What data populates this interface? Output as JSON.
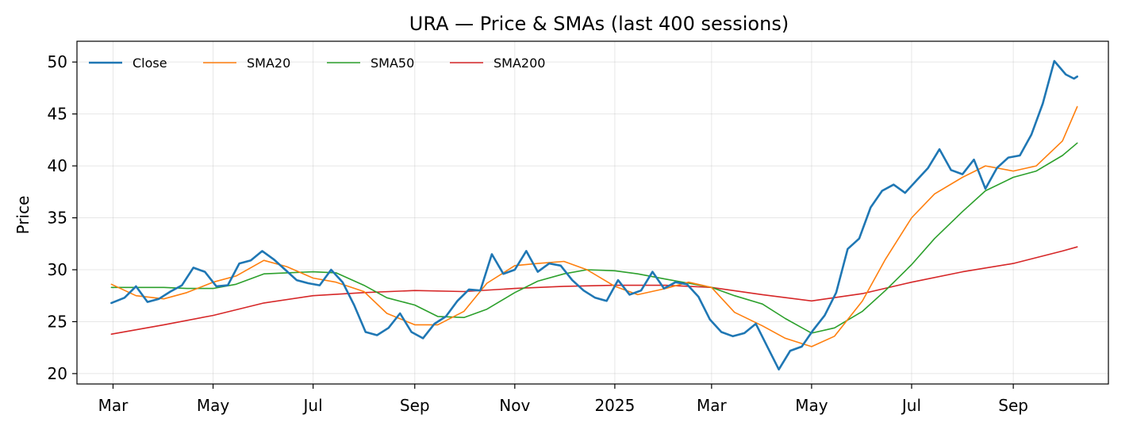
{
  "chart_data": {
    "type": "line",
    "title": "URA — Price & SMAs (last 400 sessions)",
    "xlabel": "",
    "ylabel": "Price",
    "ylim": [
      19,
      52
    ],
    "xlim": [
      "2024-02-08",
      "2025-10-29"
    ],
    "x_ticks": [
      {
        "date": "2024-03-01",
        "label": "Mar"
      },
      {
        "date": "2024-05-01",
        "label": "May"
      },
      {
        "date": "2024-07-01",
        "label": "Jul"
      },
      {
        "date": "2024-09-01",
        "label": "Sep"
      },
      {
        "date": "2024-11-01",
        "label": "Nov"
      },
      {
        "date": "2025-01-01",
        "label": "2025"
      },
      {
        "date": "2025-03-01",
        "label": "Mar"
      },
      {
        "date": "2025-05-01",
        "label": "May"
      },
      {
        "date": "2025-07-01",
        "label": "Jul"
      },
      {
        "date": "2025-09-01",
        "label": "Sep"
      }
    ],
    "y_ticks": [
      20,
      25,
      30,
      35,
      40,
      45,
      50
    ],
    "grid": true,
    "legend": {
      "placement": "top-left",
      "columns": 4,
      "frame": false
    },
    "series": [
      {
        "name": "Close",
        "color": "#1f77b4",
        "line_width": 2.6,
        "x": [
          "2024-02-29",
          "2024-03-08",
          "2024-03-15",
          "2024-03-22",
          "2024-03-29",
          "2024-04-05",
          "2024-04-12",
          "2024-04-19",
          "2024-04-26",
          "2024-05-03",
          "2024-05-10",
          "2024-05-17",
          "2024-05-24",
          "2024-05-31",
          "2024-06-07",
          "2024-06-14",
          "2024-06-21",
          "2024-06-28",
          "2024-07-05",
          "2024-07-12",
          "2024-07-19",
          "2024-07-26",
          "2024-08-02",
          "2024-08-09",
          "2024-08-16",
          "2024-08-23",
          "2024-08-30",
          "2024-09-06",
          "2024-09-13",
          "2024-09-20",
          "2024-09-27",
          "2024-10-04",
          "2024-10-11",
          "2024-10-18",
          "2024-10-25",
          "2024-11-01",
          "2024-11-08",
          "2024-11-15",
          "2024-11-22",
          "2024-11-29",
          "2024-12-06",
          "2024-12-13",
          "2024-12-20",
          "2024-12-27",
          "2025-01-03",
          "2025-01-10",
          "2025-01-17",
          "2025-01-24",
          "2025-01-31",
          "2025-02-07",
          "2025-02-14",
          "2025-02-21",
          "2025-02-28",
          "2025-03-07",
          "2025-03-14",
          "2025-03-21",
          "2025-03-28",
          "2025-04-04",
          "2025-04-11",
          "2025-04-18",
          "2025-04-25",
          "2025-05-02",
          "2025-05-09",
          "2025-05-16",
          "2025-05-23",
          "2025-05-30",
          "2025-06-06",
          "2025-06-13",
          "2025-06-20",
          "2025-06-27",
          "2025-07-04",
          "2025-07-11",
          "2025-07-18",
          "2025-07-25",
          "2025-08-01",
          "2025-08-08",
          "2025-08-15",
          "2025-08-22",
          "2025-08-29",
          "2025-09-05",
          "2025-09-12",
          "2025-09-19",
          "2025-09-26",
          "2025-10-03",
          "2025-10-08",
          "2025-10-10"
        ],
        "y": [
          26.8,
          27.3,
          28.4,
          26.9,
          27.2,
          27.9,
          28.5,
          30.2,
          29.8,
          28.4,
          28.5,
          30.6,
          30.9,
          31.8,
          31.0,
          30.0,
          29.0,
          28.7,
          28.5,
          30.0,
          28.8,
          26.6,
          24.0,
          23.7,
          24.4,
          25.8,
          24.0,
          23.4,
          24.8,
          25.5,
          27.0,
          28.1,
          28.0,
          31.5,
          29.6,
          30.0,
          31.8,
          29.8,
          30.6,
          30.4,
          29.0,
          28.0,
          27.3,
          27.0,
          29.0,
          27.6,
          28.0,
          29.8,
          28.2,
          28.8,
          28.6,
          27.4,
          25.2,
          24.0,
          23.6,
          23.9,
          24.8,
          22.6,
          20.4,
          22.2,
          22.6,
          24.2,
          25.6,
          27.8,
          32.0,
          33.0,
          36.0,
          37.6,
          38.2,
          37.4,
          38.6,
          39.8,
          41.6,
          39.6,
          39.2,
          40.6,
          37.8,
          39.8,
          40.8,
          41.0,
          43.0,
          46.0,
          50.1,
          48.8,
          48.4,
          48.6
        ]
      },
      {
        "name": "SMA20",
        "color": "#ff7f0e",
        "line_width": 1.6,
        "x": [
          "2024-02-29",
          "2024-03-15",
          "2024-04-01",
          "2024-04-15",
          "2024-05-01",
          "2024-05-15",
          "2024-06-01",
          "2024-06-15",
          "2024-07-01",
          "2024-07-15",
          "2024-08-01",
          "2024-08-15",
          "2024-09-01",
          "2024-09-15",
          "2024-10-01",
          "2024-10-15",
          "2024-11-01",
          "2024-11-15",
          "2024-12-01",
          "2024-12-15",
          "2025-01-01",
          "2025-01-15",
          "2025-02-01",
          "2025-02-15",
          "2025-03-01",
          "2025-03-15",
          "2025-04-01",
          "2025-04-15",
          "2025-05-01",
          "2025-05-15",
          "2025-06-01",
          "2025-06-15",
          "2025-07-01",
          "2025-07-15",
          "2025-08-01",
          "2025-08-15",
          "2025-09-01",
          "2025-09-15",
          "2025-10-01",
          "2025-10-10"
        ],
        "y": [
          28.6,
          27.5,
          27.2,
          27.8,
          28.8,
          29.4,
          30.9,
          30.3,
          29.2,
          28.8,
          27.9,
          25.8,
          24.7,
          24.7,
          26.0,
          28.7,
          30.4,
          30.6,
          30.8,
          30.0,
          28.4,
          27.6,
          28.2,
          28.8,
          28.3,
          25.9,
          24.6,
          23.4,
          22.6,
          23.6,
          27.0,
          31.0,
          35.0,
          37.3,
          38.9,
          40.0,
          39.5,
          40.0,
          42.4,
          45.7
        ]
      },
      {
        "name": "SMA50",
        "color": "#2ca02c",
        "line_width": 1.6,
        "x": [
          "2024-02-29",
          "2024-03-15",
          "2024-04-01",
          "2024-04-15",
          "2024-05-01",
          "2024-05-15",
          "2024-06-01",
          "2024-06-15",
          "2024-07-01",
          "2024-07-15",
          "2024-08-01",
          "2024-08-15",
          "2024-09-01",
          "2024-09-15",
          "2024-10-01",
          "2024-10-15",
          "2024-11-01",
          "2024-11-15",
          "2024-12-01",
          "2024-12-15",
          "2025-01-01",
          "2025-01-15",
          "2025-02-01",
          "2025-02-15",
          "2025-03-01",
          "2025-03-15",
          "2025-04-01",
          "2025-04-15",
          "2025-05-01",
          "2025-05-15",
          "2025-06-01",
          "2025-06-15",
          "2025-07-01",
          "2025-07-15",
          "2025-08-01",
          "2025-08-15",
          "2025-09-01",
          "2025-09-15",
          "2025-10-01",
          "2025-10-10"
        ],
        "y": [
          28.3,
          28.3,
          28.3,
          28.2,
          28.2,
          28.6,
          29.6,
          29.7,
          29.8,
          29.7,
          28.5,
          27.3,
          26.6,
          25.5,
          25.4,
          26.2,
          27.8,
          28.9,
          29.6,
          30.0,
          29.9,
          29.6,
          29.1,
          28.7,
          28.3,
          27.5,
          26.7,
          25.3,
          23.9,
          24.4,
          26.0,
          28.0,
          30.5,
          33.0,
          35.6,
          37.6,
          38.9,
          39.5,
          41.0,
          42.2
        ]
      },
      {
        "name": "SMA200",
        "color": "#d62728",
        "line_width": 1.6,
        "x": [
          "2024-02-29",
          "2024-04-01",
          "2024-05-01",
          "2024-06-01",
          "2024-07-01",
          "2024-08-01",
          "2024-09-01",
          "2024-10-01",
          "2024-11-01",
          "2024-12-01",
          "2025-01-01",
          "2025-02-01",
          "2025-03-01",
          "2025-04-01",
          "2025-05-01",
          "2025-06-01",
          "2025-07-01",
          "2025-08-01",
          "2025-09-01",
          "2025-10-01",
          "2025-10-10"
        ],
        "y": [
          23.8,
          24.7,
          25.6,
          26.8,
          27.5,
          27.8,
          28.0,
          27.9,
          28.2,
          28.4,
          28.5,
          28.5,
          28.3,
          27.6,
          27.0,
          27.7,
          28.8,
          29.8,
          30.6,
          31.8,
          32.2
        ]
      }
    ]
  }
}
